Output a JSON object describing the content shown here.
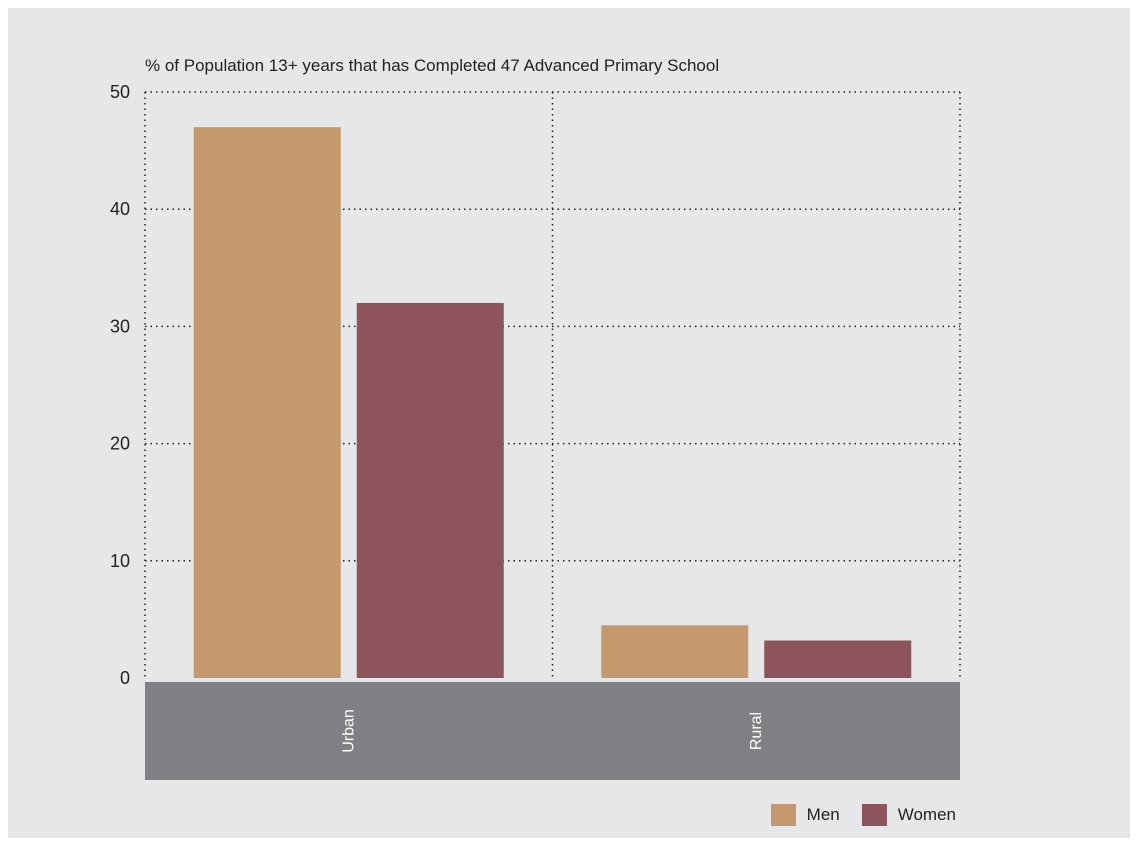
{
  "chart_data": {
    "type": "bar",
    "title": "% of Population 13+ years that has Completed 47 Advanced Primary School",
    "xlabel": "",
    "ylabel": "",
    "categories": [
      "Urban",
      "Rural"
    ],
    "series": [
      {
        "name": "Men",
        "color": "#c49a6c",
        "values": [
          47,
          4.5
        ]
      },
      {
        "name": "Women",
        "color": "#8e545b",
        "values": [
          32,
          3.2
        ]
      }
    ],
    "ylim": [
      0,
      50
    ],
    "yticks": [
      "0",
      "10",
      "20",
      "30",
      "40",
      "50"
    ],
    "grid": true,
    "legend_position": "bottom-right",
    "category_band_color": "#808184",
    "category_label_orientation": "vertical"
  }
}
